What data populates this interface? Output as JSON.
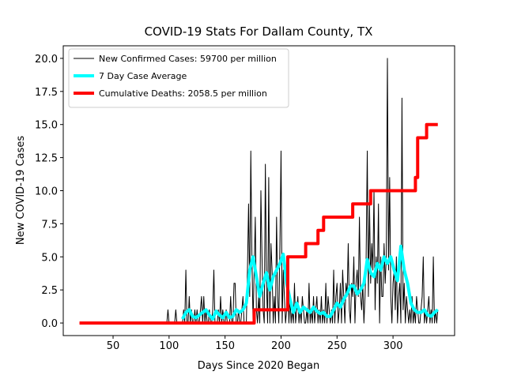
{
  "chart_data": {
    "type": "line",
    "title": "COVID-19 Stats For Dallam County, TX",
    "xlabel": "Days Since 2020 Began",
    "ylabel": "New COVID-19 Cases",
    "xlim": [
      5.5,
      355
    ],
    "ylim": [
      -0.95,
      20.95
    ],
    "xticks": [
      50,
      100,
      150,
      200,
      250,
      300
    ],
    "yticks": [
      {
        "value": 0,
        "label": "0.0"
      },
      {
        "value": 2.5,
        "label": "2.5"
      },
      {
        "value": 5,
        "label": "5.0"
      },
      {
        "value": 7.5,
        "label": "7.5"
      },
      {
        "value": 10,
        "label": "10.0"
      },
      {
        "value": 12.5,
        "label": "12.5"
      },
      {
        "value": 15,
        "label": "15.0"
      },
      {
        "value": 17.5,
        "label": "17.5"
      },
      {
        "value": 20,
        "label": "20.0"
      }
    ],
    "legend": "upper left",
    "series": [
      {
        "name": "New Confirmed Cases: 59700 per million",
        "color": "#000000",
        "width": 1,
        "x": [
          95,
          96,
          97,
          98,
          99,
          100,
          101,
          102,
          103,
          104,
          105,
          106,
          107,
          108,
          109,
          110,
          111,
          112,
          113,
          114,
          115,
          116,
          117,
          118,
          119,
          120,
          121,
          122,
          123,
          124,
          125,
          126,
          127,
          128,
          129,
          130,
          131,
          132,
          133,
          134,
          135,
          136,
          137,
          138,
          139,
          140,
          141,
          142,
          143,
          144,
          145,
          146,
          147,
          148,
          149,
          150,
          151,
          152,
          153,
          154,
          155,
          156,
          157,
          158,
          159,
          160,
          161,
          162,
          163,
          164,
          165,
          166,
          167,
          168,
          169,
          170,
          171,
          172,
          173,
          174,
          175,
          176,
          177,
          178,
          179,
          180,
          181,
          182,
          183,
          184,
          185,
          186,
          187,
          188,
          189,
          190,
          191,
          192,
          193,
          194,
          195,
          196,
          197,
          198,
          199,
          200,
          201,
          202,
          203,
          204,
          205,
          206,
          207,
          208,
          209,
          210,
          211,
          212,
          213,
          214,
          215,
          216,
          217,
          218,
          219,
          220,
          221,
          222,
          223,
          224,
          225,
          226,
          227,
          228,
          229,
          230,
          231,
          232,
          233,
          234,
          235,
          236,
          237,
          238,
          239,
          240,
          241,
          242,
          243,
          244,
          245,
          246,
          247,
          248,
          249,
          250,
          251,
          252,
          253,
          254,
          255,
          256,
          257,
          258,
          259,
          260,
          261,
          262,
          263,
          264,
          265,
          266,
          267,
          268,
          269,
          270,
          271,
          272,
          273,
          274,
          275,
          276,
          277,
          278,
          279,
          280,
          281,
          282,
          283,
          284,
          285,
          286,
          287,
          288,
          289,
          290,
          291,
          292,
          293,
          294,
          295,
          296,
          297,
          298,
          299,
          300,
          301,
          302,
          303,
          304,
          305,
          306,
          307,
          308,
          309,
          310,
          311,
          312,
          313,
          314,
          315,
          316,
          317,
          318,
          319,
          320,
          321,
          322,
          323,
          324,
          325,
          326,
          327,
          328,
          329,
          330,
          331,
          332,
          333,
          334,
          335,
          336,
          337,
          338,
          339,
          340
        ],
        "values": [
          0,
          0,
          0,
          0,
          1,
          0,
          0,
          0,
          0,
          0,
          0,
          1,
          0,
          0,
          0,
          0,
          0,
          0,
          1,
          0,
          4,
          0,
          0,
          2,
          0,
          1,
          0,
          0,
          1,
          0,
          1,
          0,
          0,
          1,
          2,
          0,
          2,
          0,
          1,
          0,
          0,
          1,
          0,
          0,
          1,
          4,
          0,
          0,
          0,
          1,
          0,
          2,
          0,
          1,
          0,
          0,
          1,
          0,
          0,
          0,
          2,
          0,
          0,
          3,
          3,
          0,
          0,
          1,
          0,
          0,
          1,
          2,
          0,
          0,
          0,
          4,
          9,
          2,
          13,
          5,
          0,
          4,
          8,
          1,
          0,
          2,
          0,
          10,
          5,
          1,
          0,
          12,
          3,
          0,
          11,
          0,
          6,
          4,
          0,
          2,
          0,
          8,
          2,
          0,
          6,
          13,
          0,
          4,
          2,
          0,
          1,
          4,
          0,
          2,
          0,
          1,
          0,
          3,
          0,
          1,
          2,
          0,
          1,
          0,
          2,
          1,
          0,
          0,
          1,
          0,
          3,
          0,
          1,
          0,
          2,
          0,
          1,
          2,
          0,
          1,
          0,
          2,
          0,
          1,
          0,
          3,
          0,
          2,
          1,
          0,
          1,
          0,
          4,
          0,
          2,
          3,
          0,
          1,
          3,
          0,
          4,
          2,
          0,
          3,
          2,
          6,
          1,
          0,
          3,
          2,
          5,
          0,
          3,
          4,
          2,
          8,
          2,
          1,
          3,
          0,
          2,
          5,
          13,
          2,
          9,
          3,
          6,
          4,
          10,
          1,
          5,
          3,
          9,
          0,
          5,
          2,
          2,
          6,
          3,
          5,
          20,
          4,
          11,
          2,
          0,
          3,
          4,
          1,
          5,
          0,
          2,
          3,
          0,
          17,
          1,
          3,
          0,
          2,
          1,
          0,
          1,
          0,
          2,
          0,
          1,
          0,
          2,
          1,
          0,
          0,
          1,
          2,
          5,
          0,
          1,
          0,
          1,
          2,
          0,
          1,
          0,
          5,
          0,
          1,
          0,
          1
        ]
      },
      {
        "name": "7 Day Case Average",
        "color": "#00ffff",
        "width": 4,
        "x": [
          112,
          115,
          118,
          121,
          124,
          127,
          130,
          133,
          136,
          139,
          142,
          145,
          148,
          151,
          154,
          157,
          160,
          163,
          166,
          169,
          172,
          175,
          178,
          181,
          184,
          187,
          190,
          193,
          196,
          199,
          202,
          205,
          208,
          211,
          214,
          217,
          220,
          223,
          226,
          229,
          232,
          235,
          238,
          241,
          244,
          247,
          250,
          253,
          256,
          259,
          262,
          265,
          268,
          271,
          274,
          277,
          280,
          283,
          286,
          289,
          292,
          295,
          298,
          301,
          304,
          307,
          310,
          313,
          316,
          319,
          322,
          325,
          328,
          331,
          334,
          337,
          340
        ],
        "values": [
          0.3,
          0.8,
          1.0,
          0.5,
          0.4,
          0.6,
          0.8,
          1.0,
          0.6,
          0.3,
          0.9,
          0.6,
          0.4,
          0.8,
          0.4,
          0.5,
          1.0,
          0.8,
          1.0,
          1.5,
          4.0,
          5.0,
          3.5,
          2.0,
          3.0,
          3.8,
          2.5,
          3.5,
          4.0,
          4.5,
          5.2,
          3.0,
          1.8,
          0.8,
          1.5,
          0.8,
          1.2,
          1.0,
          0.8,
          1.2,
          0.9,
          0.7,
          0.8,
          0.5,
          0.5,
          1.0,
          1.5,
          1.2,
          1.8,
          2.2,
          2.8,
          2.8,
          2.2,
          2.5,
          3.0,
          4.8,
          3.8,
          3.5,
          4.5,
          4.0,
          5.0,
          4.5,
          5.0,
          4.0,
          3.2,
          5.8,
          4.0,
          3.0,
          1.5,
          1.0,
          0.8,
          0.8,
          1.0,
          0.6,
          0.5,
          0.8,
          1.0
        ]
      },
      {
        "name": "Cumulative Deaths: 2058.5 per million",
        "color": "#ff0000",
        "width": 4,
        "x": [
          20,
          176,
          176,
          206,
          206,
          222,
          222,
          233,
          233,
          238,
          238,
          264,
          264,
          280,
          280,
          320,
          320,
          322,
          322,
          330,
          330,
          340
        ],
        "values": [
          0,
          0,
          1,
          1,
          5,
          5,
          6,
          6,
          7,
          7,
          8,
          8,
          9,
          9,
          10,
          10,
          11,
          11,
          14,
          14,
          15,
          15
        ]
      }
    ]
  }
}
